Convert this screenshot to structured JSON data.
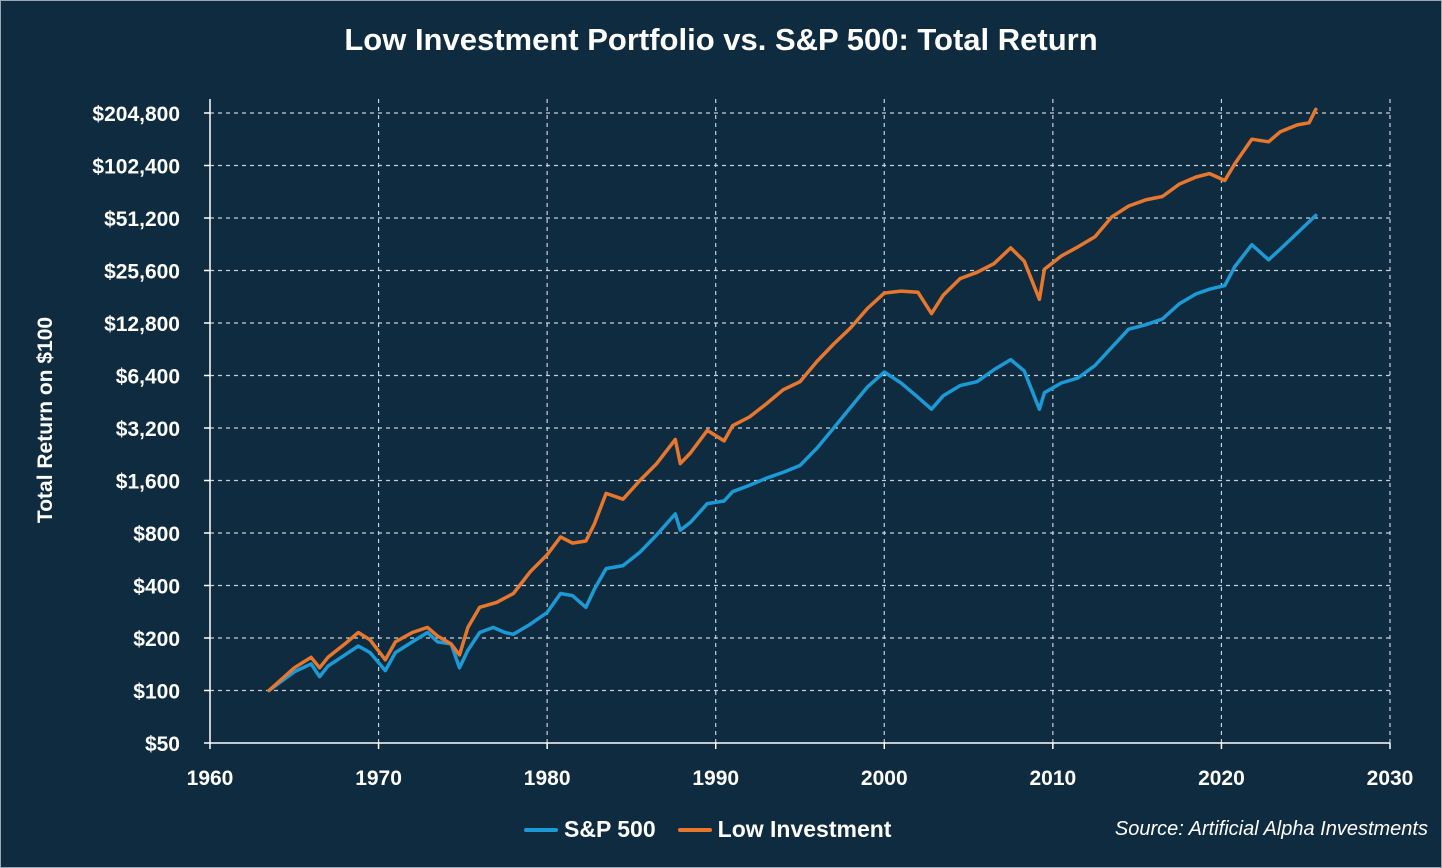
{
  "chart_data": {
    "type": "line",
    "title": "Low Investment Portfolio vs. S&P 500: Total Return",
    "ylabel": "Total Return on $100",
    "xlabel": "",
    "yscale": "log2",
    "ylim": [
      50,
      204800
    ],
    "xlim": [
      1960,
      2030
    ],
    "y_ticks": [
      {
        "value": 50,
        "label": "$50"
      },
      {
        "value": 100,
        "label": "$100"
      },
      {
        "value": 200,
        "label": "$200"
      },
      {
        "value": 400,
        "label": "$400"
      },
      {
        "value": 800,
        "label": "$800"
      },
      {
        "value": 1600,
        "label": "$1,600"
      },
      {
        "value": 3200,
        "label": "$3,200"
      },
      {
        "value": 6400,
        "label": "$6,400"
      },
      {
        "value": 12800,
        "label": "$12,800"
      },
      {
        "value": 25600,
        "label": "$25,600"
      },
      {
        "value": 51200,
        "label": "$51,200"
      },
      {
        "value": 102400,
        "label": "$102,400"
      },
      {
        "value": 204800,
        "label": "$204,800"
      }
    ],
    "x_ticks": [
      {
        "value": 1960,
        "label": "1960"
      },
      {
        "value": 1970,
        "label": "1970"
      },
      {
        "value": 1980,
        "label": "1980"
      },
      {
        "value": 1990,
        "label": "1990"
      },
      {
        "value": 2000,
        "label": "2000"
      },
      {
        "value": 2010,
        "label": "2010"
      },
      {
        "value": 2020,
        "label": "2020"
      },
      {
        "value": 2030,
        "label": "2030"
      }
    ],
    "grid": true,
    "legend_position": "bottom",
    "series": [
      {
        "name": "S&P 500",
        "color": "#1b9ad6",
        "points": [
          [
            1963.5,
            100
          ],
          [
            1965,
            128
          ],
          [
            1966,
            142
          ],
          [
            1966.5,
            120
          ],
          [
            1967,
            138
          ],
          [
            1968,
            160
          ],
          [
            1968.8,
            180
          ],
          [
            1969.5,
            165
          ],
          [
            1970.4,
            130
          ],
          [
            1971,
            165
          ],
          [
            1972,
            190
          ],
          [
            1972.9,
            215
          ],
          [
            1973.5,
            190
          ],
          [
            1974.3,
            185
          ],
          [
            1974.8,
            135
          ],
          [
            1975.3,
            170
          ],
          [
            1976,
            215
          ],
          [
            1976.8,
            230
          ],
          [
            1977.5,
            215
          ],
          [
            1978,
            210
          ],
          [
            1979,
            240
          ],
          [
            1980,
            280
          ],
          [
            1980.8,
            360
          ],
          [
            1981.5,
            350
          ],
          [
            1982.3,
            300
          ],
          [
            1982.8,
            380
          ],
          [
            1983.5,
            500
          ],
          [
            1984.5,
            520
          ],
          [
            1985.5,
            620
          ],
          [
            1986.5,
            780
          ],
          [
            1987.6,
            1030
          ],
          [
            1987.9,
            830
          ],
          [
            1988.5,
            920
          ],
          [
            1989.5,
            1180
          ],
          [
            1990.5,
            1220
          ],
          [
            1991,
            1380
          ],
          [
            1992,
            1500
          ],
          [
            1993,
            1650
          ],
          [
            1994,
            1780
          ],
          [
            1995,
            1950
          ],
          [
            1996,
            2450
          ],
          [
            1997,
            3200
          ],
          [
            1998,
            4200
          ],
          [
            1999,
            5500
          ],
          [
            2000,
            6700
          ],
          [
            2001,
            5800
          ],
          [
            2002,
            4800
          ],
          [
            2002.8,
            4100
          ],
          [
            2003.5,
            4900
          ],
          [
            2004.5,
            5600
          ],
          [
            2005.5,
            5900
          ],
          [
            2006.5,
            6900
          ],
          [
            2007.5,
            7900
          ],
          [
            2008.3,
            6800
          ],
          [
            2009.2,
            4100
          ],
          [
            2009.5,
            5100
          ],
          [
            2010.5,
            5800
          ],
          [
            2011.5,
            6200
          ],
          [
            2012.5,
            7300
          ],
          [
            2013.5,
            9300
          ],
          [
            2014.5,
            11800
          ],
          [
            2015.5,
            12500
          ],
          [
            2016.5,
            13500
          ],
          [
            2017.5,
            16500
          ],
          [
            2018.5,
            18800
          ],
          [
            2019.3,
            20000
          ],
          [
            2020.2,
            21000
          ],
          [
            2020.8,
            27000
          ],
          [
            2021.8,
            36000
          ],
          [
            2022.8,
            29500
          ],
          [
            2023.5,
            34000
          ],
          [
            2024.5,
            42000
          ],
          [
            2025.6,
            53000
          ]
        ]
      },
      {
        "name": "Low Investment",
        "color": "#e8772e",
        "points": [
          [
            1963.5,
            100
          ],
          [
            1965,
            135
          ],
          [
            1966,
            155
          ],
          [
            1966.5,
            135
          ],
          [
            1967,
            155
          ],
          [
            1968,
            185
          ],
          [
            1968.8,
            215
          ],
          [
            1969.5,
            195
          ],
          [
            1970.4,
            150
          ],
          [
            1971,
            190
          ],
          [
            1972,
            215
          ],
          [
            1972.9,
            230
          ],
          [
            1973.5,
            205
          ],
          [
            1974.3,
            185
          ],
          [
            1974.8,
            160
          ],
          [
            1975.3,
            230
          ],
          [
            1976,
            300
          ],
          [
            1977,
            320
          ],
          [
            1978,
            360
          ],
          [
            1979,
            480
          ],
          [
            1980,
            600
          ],
          [
            1980.8,
            760
          ],
          [
            1981.5,
            700
          ],
          [
            1982.3,
            720
          ],
          [
            1982.8,
            900
          ],
          [
            1983.5,
            1350
          ],
          [
            1984.5,
            1250
          ],
          [
            1985.5,
            1600
          ],
          [
            1986.5,
            2000
          ],
          [
            1987.6,
            2750
          ],
          [
            1987.9,
            2000
          ],
          [
            1988.5,
            2300
          ],
          [
            1989.5,
            3100
          ],
          [
            1990.5,
            2700
          ],
          [
            1991,
            3300
          ],
          [
            1992,
            3700
          ],
          [
            1993,
            4400
          ],
          [
            1994,
            5300
          ],
          [
            1995,
            5900
          ],
          [
            1996,
            7700
          ],
          [
            1997,
            9700
          ],
          [
            1998,
            12000
          ],
          [
            1999,
            15500
          ],
          [
            2000,
            19000
          ],
          [
            2001,
            19500
          ],
          [
            2002,
            19200
          ],
          [
            2002.8,
            14500
          ],
          [
            2003.5,
            18500
          ],
          [
            2004.5,
            23000
          ],
          [
            2005.5,
            25000
          ],
          [
            2006.5,
            28000
          ],
          [
            2007.5,
            34500
          ],
          [
            2008.3,
            29000
          ],
          [
            2009.2,
            17500
          ],
          [
            2009.5,
            26000
          ],
          [
            2010.5,
            31000
          ],
          [
            2011.5,
            35000
          ],
          [
            2012.5,
            40000
          ],
          [
            2013.5,
            52000
          ],
          [
            2014.5,
            60000
          ],
          [
            2015.5,
            65000
          ],
          [
            2016.5,
            68000
          ],
          [
            2017.5,
            80000
          ],
          [
            2018.5,
            88000
          ],
          [
            2019.3,
            92000
          ],
          [
            2020.2,
            84000
          ],
          [
            2020.8,
            105000
          ],
          [
            2021.8,
            145000
          ],
          [
            2022.8,
            140000
          ],
          [
            2023.5,
            160000
          ],
          [
            2024.5,
            175000
          ],
          [
            2025.2,
            180000
          ],
          [
            2025.6,
            215000
          ]
        ]
      }
    ]
  },
  "legend": {
    "items": [
      {
        "label": "S&P 500",
        "color": "#1b9ad6"
      },
      {
        "label": "Low Investment",
        "color": "#e8772e"
      }
    ]
  },
  "source": "Source: Artificial Alpha Investments"
}
